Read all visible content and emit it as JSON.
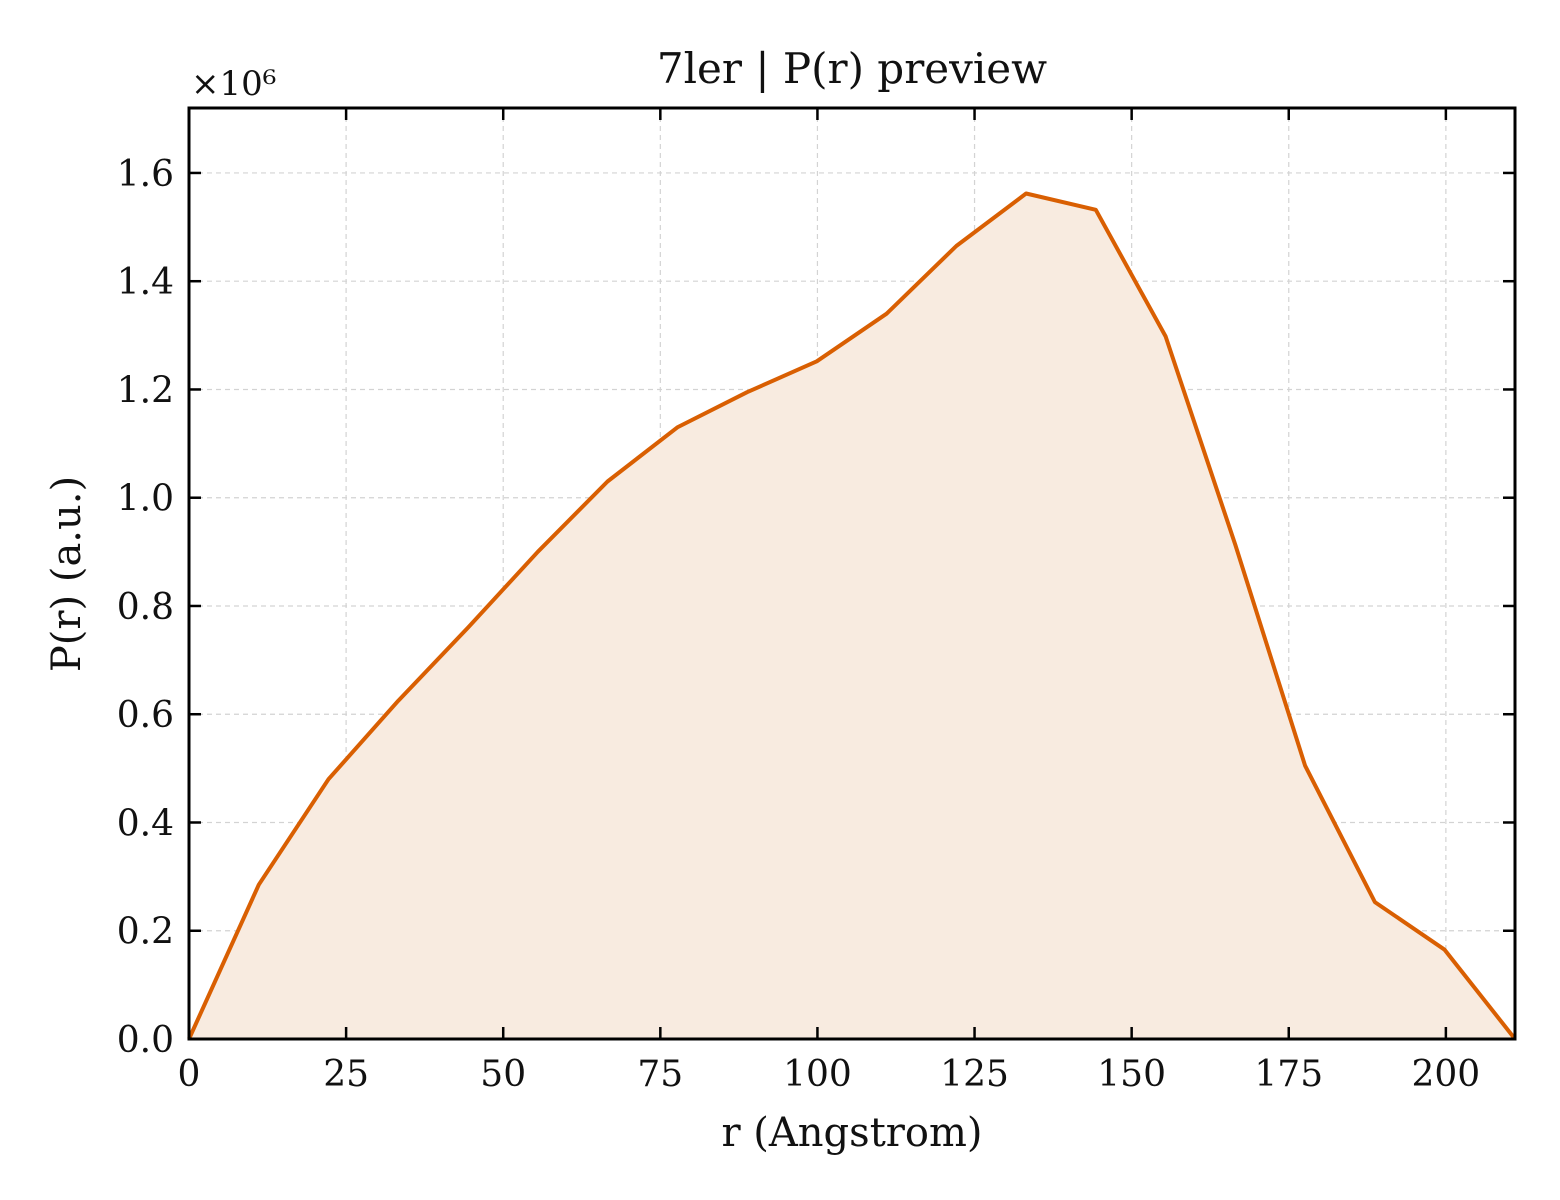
{
  "chart_data": {
    "type": "area",
    "title": "7ler | P(r) preview",
    "xlabel": "r (Angstrom)",
    "ylabel": "P(r) (a.u.)",
    "y_multiplier_text": "×10⁶",
    "xlim": [
      0,
      211
    ],
    "ylim": [
      0,
      1.72
    ],
    "x_ticks": [
      0,
      25,
      50,
      75,
      100,
      125,
      150,
      175,
      200
    ],
    "x_tick_labels": [
      "0",
      "25",
      "50",
      "75",
      "100",
      "125",
      "150",
      "175",
      "200"
    ],
    "y_ticks": [
      0,
      0.2,
      0.4,
      0.6,
      0.8,
      1.0,
      1.2,
      1.4,
      1.6
    ],
    "y_tick_labels": [
      "0.0",
      "0.2",
      "0.4",
      "0.6",
      "0.8",
      "1.0",
      "1.2",
      "1.4",
      "1.6"
    ],
    "grid": true,
    "scale": "×10^6",
    "line_color": "#d95f02",
    "fill_color": "#f8ebe0",
    "series": [
      {
        "x": [
          0,
          11.1,
          22.2,
          33.3,
          44.4,
          55.5,
          66.6,
          77.7,
          88.8,
          99.9,
          111.0,
          122.1,
          133.2,
          144.3,
          155.4,
          166.5,
          177.6,
          188.7,
          199.8,
          211.0
        ],
        "y": [
          0.0,
          0.285,
          0.48,
          0.625,
          0.76,
          0.9,
          1.03,
          1.13,
          1.195,
          1.252,
          1.34,
          1.465,
          1.562,
          1.532,
          1.298,
          0.913,
          0.505,
          0.253,
          0.165,
          0.0
        ]
      }
    ]
  }
}
